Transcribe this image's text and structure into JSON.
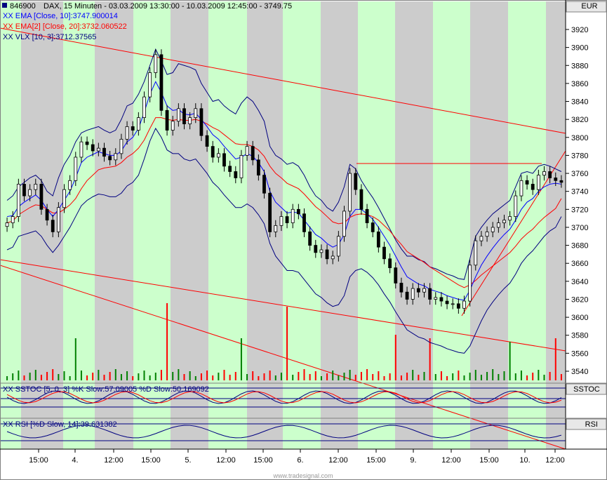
{
  "header": {
    "symbol": "846900",
    "title": "DAX, 15 Minuten - 03.03.2009 13:30:00 - 10.03.2009 12:45:00 - 3749.75",
    "ema10_label": "XX EMA [Close, 10]:3747.900014",
    "ema20_label": "XX EMA[2] [Close, 20]:3732.060522",
    "vlx_label": "XX VLX [10, 3]:3712.37565",
    "currency": "EUR"
  },
  "stoch_panel": {
    "label": "XX SSTOC [5, 0, 3] %K Slow:57.09005  %D Slow:50.169092",
    "tag": "SSTOC"
  },
  "rsi_panel": {
    "label": "XX RSI [%D Slow, 14]:39.631382",
    "tag": "RSI"
  },
  "footer": {
    "watermark": "www.tradesignal.com"
  },
  "colors": {
    "up": "#0000ff",
    "down": "#ff0000",
    "session_day": "#ccffcc",
    "session_night": "#cccccc",
    "ema10": "#0000ff",
    "ema20": "#ff0000",
    "vlx": "#000080",
    "volume_up": "#008000",
    "volume_down": "#ff0000"
  },
  "chart_data": {
    "type": "candlestick",
    "instrument": "DAX",
    "y_axis": {
      "ticks": [
        3540,
        3560,
        3580,
        3600,
        3620,
        3640,
        3660,
        3680,
        3700,
        3720,
        3740,
        3760,
        3780,
        3800,
        3820,
        3840,
        3860,
        3880,
        3900,
        3920
      ],
      "range": [
        3530,
        3932
      ],
      "position": "right"
    },
    "x_axis": {
      "labels": [
        "15:00",
        "4.",
        "12:00",
        "15:00",
        "5.",
        "12:00",
        "15:00",
        "6.",
        "12:00",
        "15:00",
        "9.",
        "12:00",
        "15:00",
        "10.",
        "12:00"
      ]
    },
    "series": [
      {
        "name": "Close",
        "values": [
          3705,
          3712,
          3748,
          3735,
          3742,
          3748,
          3720,
          3708,
          3695,
          3722,
          3742,
          3752,
          3778,
          3795,
          3792,
          3785,
          3788,
          3779,
          3775,
          3782,
          3798,
          3812,
          3808,
          3822,
          3845,
          3872,
          3892,
          3830,
          3808,
          3818,
          3832,
          3815,
          3822,
          3832,
          3802,
          3790,
          3778,
          3782,
          3768,
          3762,
          3755,
          3780,
          3790,
          3775,
          3758,
          3738,
          3695,
          3702,
          3712,
          3705,
          3720,
          3715,
          3695,
          3680,
          3672,
          3675,
          3665,
          3668,
          3690,
          3718,
          3760,
          3742,
          3720,
          3705,
          3695,
          3678,
          3665,
          3655,
          3638,
          3628,
          3620,
          3632,
          3628,
          3632,
          3620,
          3622,
          3618,
          3615,
          3615,
          3610,
          3618,
          3658,
          3685,
          3690,
          3695,
          3700,
          3705,
          3708,
          3712,
          3735,
          3752,
          3748,
          3742,
          3758,
          3762,
          3755,
          3752,
          3750
        ]
      },
      {
        "name": "EMA [Close, 10]",
        "values": [
          3712,
          3713,
          3723,
          3728,
          3732,
          3736,
          3730,
          3720,
          3712,
          3720,
          3730,
          3740,
          3755,
          3772,
          3778,
          3781,
          3784,
          3782,
          3780,
          3780,
          3785,
          3795,
          3800,
          3810,
          3828,
          3848,
          3862,
          3850,
          3835,
          3830,
          3831,
          3826,
          3825,
          3827,
          3820,
          3812,
          3803,
          3798,
          3790,
          3783,
          3776,
          3778,
          3782,
          3779,
          3772,
          3762,
          3740,
          3728,
          3722,
          3716,
          3717,
          3716,
          3708,
          3700,
          3692,
          3688,
          3682,
          3678,
          3681,
          3692,
          3712,
          3720,
          3720,
          3715,
          3709,
          3700,
          3690,
          3680,
          3668,
          3656,
          3645,
          3641,
          3637,
          3635,
          3631,
          3629,
          3627,
          3624,
          3622,
          3620,
          3619,
          3630,
          3645,
          3658,
          3668,
          3677,
          3685,
          3692,
          3698,
          3708,
          3720,
          3728,
          3732,
          3740,
          3745,
          3748,
          3749,
          3748
        ]
      },
      {
        "name": "EMA [Close, 20]",
        "values": [
          3705,
          3707,
          3714,
          3718,
          3722,
          3725,
          3724,
          3720,
          3716,
          3716,
          3720,
          3725,
          3732,
          3743,
          3752,
          3758,
          3764,
          3766,
          3767,
          3768,
          3772,
          3778,
          3782,
          3788,
          3797,
          3810,
          3822,
          3822,
          3820,
          3819,
          3820,
          3819,
          3819,
          3820,
          3818,
          3815,
          3811,
          3808,
          3803,
          3798,
          3793,
          3792,
          3792,
          3790,
          3786,
          3779,
          3768,
          3760,
          3755,
          3749,
          3746,
          3743,
          3737,
          3730,
          3723,
          3718,
          3712,
          3706,
          3704,
          3705,
          3711,
          3714,
          3715,
          3714,
          3712,
          3708,
          3702,
          3696,
          3688,
          3681,
          3673,
          3669,
          3665,
          3661,
          3656,
          3652,
          3648,
          3644,
          3640,
          3636,
          3633,
          3636,
          3641,
          3647,
          3652,
          3657,
          3662,
          3667,
          3672,
          3679,
          3687,
          3693,
          3698,
          3705,
          3711,
          3716,
          3721,
          3732
        ]
      },
      {
        "name": "VLX upper",
        "values": [
          3730,
          3735,
          3745,
          3750,
          3755,
          3758,
          3752,
          3740,
          3735,
          3755,
          3770,
          3780,
          3795,
          3805,
          3808,
          3810,
          3812,
          3808,
          3805,
          3808,
          3820,
          3835,
          3838,
          3848,
          3862,
          3880,
          3898,
          3885,
          3870,
          3872,
          3882,
          3880,
          3878,
          3875,
          3860,
          3850,
          3840,
          3842,
          3835,
          3830,
          3826,
          3838,
          3845,
          3840,
          3830,
          3818,
          3790,
          3780,
          3776,
          3770,
          3772,
          3768,
          3758,
          3745,
          3735,
          3730,
          3722,
          3718,
          3728,
          3745,
          3770,
          3765,
          3752,
          3742,
          3733,
          3722,
          3710,
          3698,
          3686,
          3676,
          3668,
          3668,
          3664,
          3662,
          3656,
          3654,
          3651,
          3648,
          3646,
          3643,
          3642,
          3665,
          3690,
          3700,
          3708,
          3715,
          3720,
          3725,
          3730,
          3745,
          3760,
          3762,
          3760,
          3768,
          3770,
          3768,
          3765,
          3762
        ]
      },
      {
        "name": "VLX lower",
        "values": [
          3675,
          3678,
          3690,
          3692,
          3694,
          3696,
          3690,
          3680,
          3672,
          3680,
          3690,
          3700,
          3712,
          3724,
          3730,
          3734,
          3737,
          3736,
          3734,
          3734,
          3738,
          3746,
          3750,
          3758,
          3776,
          3796,
          3810,
          3800,
          3786,
          3782,
          3782,
          3776,
          3774,
          3776,
          3768,
          3760,
          3750,
          3744,
          3736,
          3729,
          3722,
          3722,
          3726,
          3722,
          3714,
          3704,
          3682,
          3668,
          3660,
          3652,
          3652,
          3650,
          3642,
          3634,
          3626,
          3622,
          3616,
          3612,
          3614,
          3624,
          3645,
          3652,
          3654,
          3650,
          3644,
          3636,
          3626,
          3617,
          3606,
          3596,
          3586,
          3582,
          3578,
          3576,
          3572,
          3570,
          3568,
          3565,
          3563,
          3561,
          3560,
          3568,
          3582,
          3596,
          3608,
          3617,
          3625,
          3632,
          3638,
          3648,
          3660,
          3668,
          3674,
          3682,
          3690,
          3696,
          3700,
          3712
        ]
      }
    ]
  }
}
